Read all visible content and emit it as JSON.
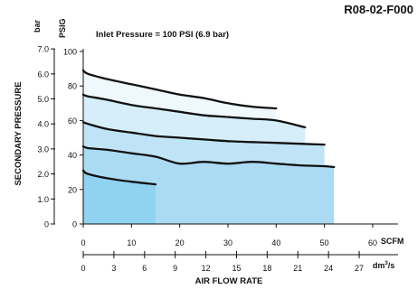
{
  "chart_data": {
    "type": "area",
    "figure_id": "R08-02-F000",
    "annotation": "Inlet Pressure = 100 PSI (6.9 bar)",
    "ylabel": "SECONDARY PRESSURE",
    "xlabel": "AIR FLOW RATE",
    "y_units": {
      "psig": "PSIG",
      "bar": "bar"
    },
    "x_units": {
      "scfm": "SCFM",
      "dm3s_base": "dm",
      "dm3s_sup": "3",
      "dm3s_tail": "/s"
    },
    "y_psig": {
      "range": [
        0,
        100
      ],
      "ticks": [
        "0",
        "20",
        "40",
        "60",
        "80",
        "100"
      ]
    },
    "y_bar": {
      "range": [
        0,
        7.0
      ],
      "ticks": [
        "0",
        "1.0",
        "2.0",
        "3.0",
        "4.0",
        "5.0",
        "6.0",
        "7.0"
      ]
    },
    "x_scfm": {
      "range": [
        0,
        60
      ],
      "ticks": [
        "0",
        "10",
        "20",
        "30",
        "40",
        "50",
        "60"
      ]
    },
    "x_dm3s": {
      "range": [
        0,
        27
      ],
      "ticks": [
        "0",
        "3",
        "6",
        "9",
        "12",
        "15",
        "18",
        "21",
        "24",
        "27"
      ]
    },
    "series": [
      {
        "fill_end_scfm": 40,
        "fill": "#eef8fd",
        "points": [
          [
            0,
            89
          ],
          [
            1,
            87
          ],
          [
            5,
            84
          ],
          [
            10,
            81
          ],
          [
            15,
            78
          ],
          [
            20,
            75
          ],
          [
            25,
            73
          ],
          [
            30,
            70
          ],
          [
            35,
            68
          ],
          [
            40,
            67
          ]
        ]
      },
      {
        "fill_end_scfm": 46,
        "fill": "#d6eefa",
        "points": [
          [
            0,
            75
          ],
          [
            1,
            74
          ],
          [
            5,
            72
          ],
          [
            10,
            69
          ],
          [
            15,
            67
          ],
          [
            20,
            65
          ],
          [
            25,
            63
          ],
          [
            30,
            62
          ],
          [
            35,
            61
          ],
          [
            40,
            60
          ],
          [
            46,
            56
          ]
        ]
      },
      {
        "fill_end_scfm": 50,
        "fill": "#bfe4f6",
        "points": [
          [
            0,
            59
          ],
          [
            1,
            58
          ],
          [
            5,
            55
          ],
          [
            10,
            53
          ],
          [
            15,
            51
          ],
          [
            20,
            50
          ],
          [
            25,
            49
          ],
          [
            30,
            48
          ],
          [
            35,
            47.5
          ],
          [
            40,
            47
          ],
          [
            45,
            46.5
          ],
          [
            50,
            46
          ]
        ]
      },
      {
        "fill_end_scfm": 52,
        "fill": "#aadbf3",
        "points": [
          [
            0,
            45
          ],
          [
            1,
            44
          ],
          [
            5,
            43
          ],
          [
            10,
            41
          ],
          [
            15,
            39
          ],
          [
            20,
            35
          ],
          [
            25,
            36
          ],
          [
            30,
            35
          ],
          [
            35,
            36
          ],
          [
            40,
            35
          ],
          [
            45,
            34
          ],
          [
            50,
            33.5
          ],
          [
            52,
            33
          ]
        ]
      },
      {
        "fill_end_scfm": 15,
        "fill": "#90d3f1",
        "points": [
          [
            0,
            31
          ],
          [
            1,
            29
          ],
          [
            5,
            26.5
          ],
          [
            10,
            24.5
          ],
          [
            15,
            23
          ]
        ]
      }
    ]
  }
}
